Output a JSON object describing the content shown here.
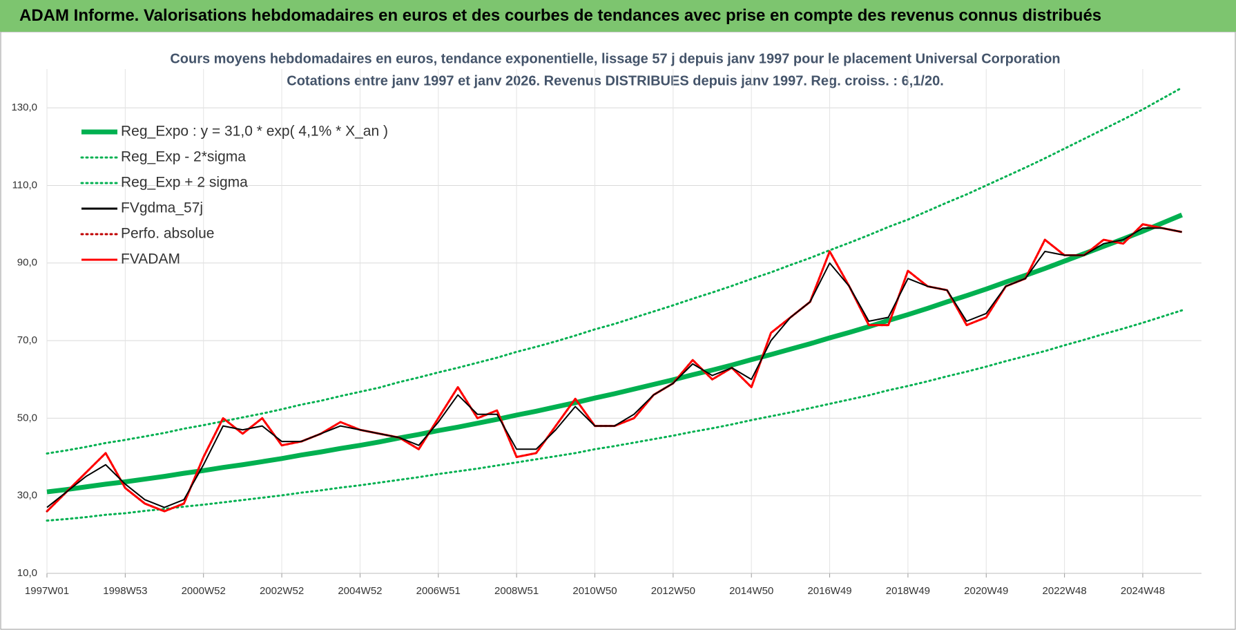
{
  "header": {
    "title": "ADAM Informe. Valorisations hebdomadaires en euros et des courbes de tendances avec prise en compte des revenus connus distribués"
  },
  "chart_data": {
    "type": "line",
    "title": "Cours moyens hebdomadaires en euros, tendance exponentielle, lissage 57 j depuis janv 1997 pour le placement Universal Corporation",
    "subtitle": "Cotations entre janv 1997 et janv 2026. Revenus DISTRIBUES depuis janv 1997. Reg. croiss. : 6,1/20.",
    "grid": true,
    "legend": "top-left",
    "xlim": [
      1997,
      2026.5
    ],
    "ylim": [
      10,
      140
    ],
    "xticks": [
      {
        "value": 1997,
        "label": "1997W01"
      },
      {
        "value": 1999,
        "label": "1998W53"
      },
      {
        "value": 2001,
        "label": "2000W52"
      },
      {
        "value": 2003,
        "label": "2002W52"
      },
      {
        "value": 2005,
        "label": "2004W52"
      },
      {
        "value": 2007,
        "label": "2006W51"
      },
      {
        "value": 2009,
        "label": "2008W51"
      },
      {
        "value": 2011,
        "label": "2010W50"
      },
      {
        "value": 2013,
        "label": "2012W50"
      },
      {
        "value": 2015,
        "label": "2014W50"
      },
      {
        "value": 2017,
        "label": "2016W49"
      },
      {
        "value": 2019,
        "label": "2018W49"
      },
      {
        "value": 2021,
        "label": "2020W49"
      },
      {
        "value": 2023,
        "label": "2022W48"
      },
      {
        "value": 2025,
        "label": "2024W48"
      }
    ],
    "yticks": [
      {
        "value": 10,
        "label": "10,0"
      },
      {
        "value": 30,
        "label": "30,0"
      },
      {
        "value": 50,
        "label": "50,0"
      },
      {
        "value": 70,
        "label": "70,0"
      },
      {
        "value": 90,
        "label": "90,0"
      },
      {
        "value": 110,
        "label": "110,0"
      },
      {
        "value": 130,
        "label": "130,0"
      }
    ],
    "x": [
      1997,
      1997.5,
      1998,
      1998.5,
      1999,
      1999.5,
      2000,
      2000.5,
      2001,
      2001.5,
      2002,
      2002.5,
      2003,
      2003.5,
      2004,
      2004.5,
      2005,
      2005.5,
      2006,
      2006.5,
      2007,
      2007.5,
      2008,
      2008.5,
      2009,
      2009.5,
      2010,
      2010.5,
      2011,
      2011.5,
      2012,
      2012.5,
      2013,
      2013.5,
      2014,
      2014.5,
      2015,
      2015.5,
      2016,
      2016.5,
      2017,
      2017.5,
      2018,
      2018.5,
      2019,
      2019.5,
      2020,
      2020.5,
      2021,
      2021.5,
      2022,
      2022.5,
      2023,
      2023.5,
      2024,
      2024.5,
      2025,
      2025.5,
      2026
    ],
    "series": [
      {
        "name": "Reg_Expo : y = 31,0 * exp( 4,1% *  X_an )",
        "color": "#00b050",
        "style": "thick",
        "values": [
          31.0,
          31.6,
          32.3,
          33.0,
          33.6,
          34.3,
          35.0,
          35.8,
          36.5,
          37.3,
          38.0,
          38.8,
          39.6,
          40.5,
          41.3,
          42.2,
          43.0,
          43.9,
          44.9,
          45.8,
          46.8,
          47.7,
          48.7,
          49.7,
          50.8,
          51.8,
          52.9,
          54.0,
          55.2,
          56.3,
          57.5,
          58.7,
          59.9,
          61.2,
          62.4,
          63.7,
          65.1,
          66.4,
          67.8,
          69.2,
          70.7,
          72.1,
          73.6,
          75.2,
          76.7,
          78.3,
          80.0,
          81.6,
          83.3,
          85.1,
          86.8,
          88.6,
          90.5,
          92.4,
          94.3,
          96.2,
          98.2,
          100.3,
          102.4
        ]
      },
      {
        "name": "Reg_Exp - 2*sigma",
        "color": "#00b050",
        "style": "dotted",
        "values": [
          23.6,
          24.0,
          24.5,
          25.1,
          25.5,
          26.1,
          26.6,
          27.2,
          27.7,
          28.3,
          28.9,
          29.5,
          30.1,
          30.8,
          31.4,
          32.1,
          32.7,
          33.4,
          34.1,
          34.8,
          35.6,
          36.3,
          37.0,
          37.8,
          38.6,
          39.4,
          40.2,
          41.0,
          42.0,
          42.8,
          43.7,
          44.6,
          45.5,
          46.5,
          47.4,
          48.4,
          49.5,
          50.5,
          51.5,
          52.6,
          53.7,
          54.8,
          55.9,
          57.2,
          58.3,
          59.5,
          60.8,
          62.0,
          63.3,
          64.7,
          66.0,
          67.3,
          68.8,
          70.2,
          71.7,
          73.1,
          74.6,
          76.2,
          77.8
        ]
      },
      {
        "name": "Reg_Exp + 2 sigma",
        "color": "#00b050",
        "style": "dotted",
        "values": [
          40.9,
          41.7,
          42.6,
          43.6,
          44.4,
          45.3,
          46.2,
          47.3,
          48.2,
          49.2,
          50.2,
          51.2,
          52.3,
          53.5,
          54.5,
          55.7,
          56.8,
          57.9,
          59.3,
          60.5,
          61.8,
          63.0,
          64.3,
          65.6,
          67.1,
          68.4,
          69.8,
          71.3,
          72.9,
          74.3,
          75.9,
          77.5,
          79.1,
          80.8,
          82.4,
          84.1,
          85.9,
          87.6,
          89.5,
          91.3,
          93.3,
          95.2,
          97.2,
          99.3,
          101.2,
          103.4,
          105.6,
          107.7,
          110.0,
          112.3,
          114.6,
          117.0,
          119.5,
          122.0,
          124.5,
          127.0,
          129.6,
          132.4,
          135.2
        ]
      },
      {
        "name": "FVgdma_57j",
        "color": "#000000",
        "style": "solid",
        "values": [
          27,
          31,
          35,
          38,
          33,
          29,
          27,
          29,
          38,
          48,
          47,
          48,
          44,
          44,
          46,
          48,
          47,
          46,
          45,
          43,
          49,
          56,
          51,
          51,
          42,
          42,
          47,
          53,
          48,
          48,
          51,
          56,
          59,
          64,
          61,
          63,
          60,
          70,
          76,
          80,
          90,
          84,
          75,
          76,
          86,
          84,
          83,
          75,
          77,
          84,
          86,
          93,
          92,
          92,
          95,
          96,
          99,
          99,
          98
        ]
      },
      {
        "name": "Perfo. absolue",
        "color": "#c00000",
        "style": "dotted",
        "values": [
          26,
          31,
          36,
          41,
          32,
          28,
          26,
          28,
          40,
          50,
          46,
          50,
          43,
          44,
          46,
          49,
          47,
          46,
          45,
          42,
          50,
          58,
          50,
          52,
          40,
          41,
          48,
          55,
          48,
          48,
          50,
          56,
          59,
          65,
          60,
          63,
          58,
          72,
          76,
          80,
          93,
          84,
          74,
          74,
          88,
          84,
          83,
          74,
          76,
          84,
          86,
          96,
          92,
          92,
          96,
          95,
          100,
          99,
          98
        ]
      },
      {
        "name": "FVADAM",
        "color": "#ff0000",
        "style": "solid",
        "values": [
          26,
          31,
          36,
          41,
          32,
          28,
          26,
          28,
          40,
          50,
          46,
          50,
          43,
          44,
          46,
          49,
          47,
          46,
          45,
          42,
          50,
          58,
          50,
          52,
          40,
          41,
          48,
          55,
          48,
          48,
          50,
          56,
          59,
          65,
          60,
          63,
          58,
          72,
          76,
          80,
          93,
          84,
          74,
          74,
          88,
          84,
          83,
          74,
          76,
          84,
          86,
          96,
          92,
          92,
          96,
          95,
          100,
          99,
          98
        ]
      }
    ]
  }
}
